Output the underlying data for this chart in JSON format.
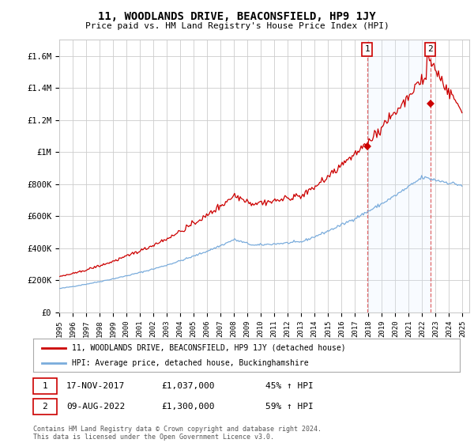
{
  "title": "11, WOODLANDS DRIVE, BEACONSFIELD, HP9 1JY",
  "subtitle": "Price paid vs. HM Land Registry's House Price Index (HPI)",
  "ylabel_ticks": [
    "£0",
    "£200K",
    "£400K",
    "£600K",
    "£800K",
    "£1M",
    "£1.2M",
    "£1.4M",
    "£1.6M"
  ],
  "ytick_values": [
    0,
    200000,
    400000,
    600000,
    800000,
    1000000,
    1200000,
    1400000,
    1600000
  ],
  "ylim": [
    0,
    1700000
  ],
  "xlim_start": 1995.0,
  "xlim_end": 2025.5,
  "sale1_date": 2017.9,
  "sale1_price": 1037000,
  "sale2_date": 2022.6,
  "sale2_price": 1300000,
  "red_line_color": "#cc0000",
  "blue_line_color": "#7aacdc",
  "vline_color": "#dd4444",
  "marker_color": "#cc0000",
  "grid_color": "#cccccc",
  "span_color": "#ddeeff",
  "background_color": "#ffffff",
  "legend_label_red": "11, WOODLANDS DRIVE, BEACONSFIELD, HP9 1JY (detached house)",
  "legend_label_blue": "HPI: Average price, detached house, Buckinghamshire",
  "footer": "Contains HM Land Registry data © Crown copyright and database right 2024.\nThis data is licensed under the Open Government Licence v3.0.",
  "ann1_date": "17-NOV-2017",
  "ann1_price": "£1,037,000",
  "ann1_hpi": "45% ↑ HPI",
  "ann2_date": "09-AUG-2022",
  "ann2_price": "£1,300,000",
  "ann2_hpi": "59% ↑ HPI"
}
